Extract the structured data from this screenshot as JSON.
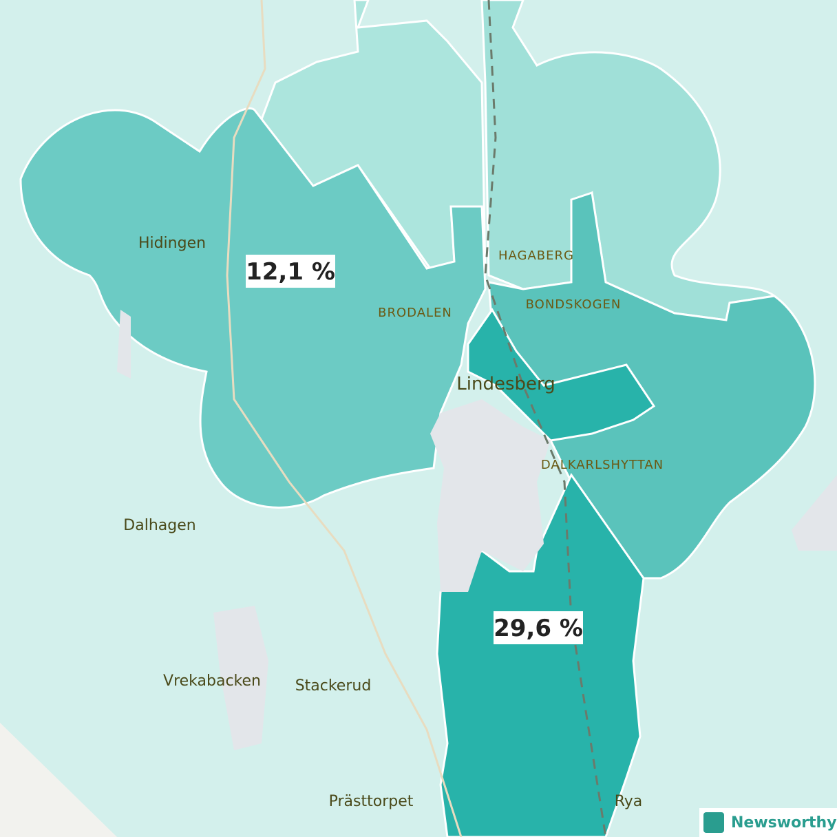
{
  "places": [
    "Hidingen",
    "Dalhagen",
    "Vrekabacken",
    "Stackerud",
    "Prästtorpet",
    "Rya",
    "Lindesberg"
  ],
  "districts": [
    "HAGABERG",
    "BRODALEN",
    "BONDSKOGEN",
    "DALKARLSHYTTAN"
  ],
  "area_labels": [
    "12,1 %",
    "29,6 %"
  ],
  "logo": "Newsworthy"
}
